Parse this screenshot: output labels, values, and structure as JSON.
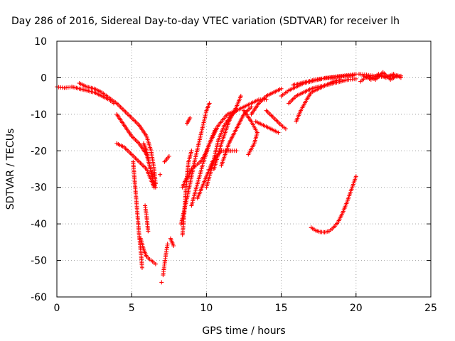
{
  "chart_data": {
    "type": "scatter",
    "title": "Day 286 of 2016, Sidereal Day-to-day VTEC variation (SDTVAR) for receiver lh",
    "xlabel": "GPS time / hours",
    "ylabel": "SDTVAR / TECUs",
    "xlim": [
      0,
      25
    ],
    "ylim": [
      -60,
      10
    ],
    "xticks": [
      0,
      5,
      10,
      15,
      20,
      25
    ],
    "yticks": [
      10,
      0,
      -10,
      -20,
      -30,
      -40,
      -50,
      -60
    ],
    "grid": true,
    "marker": "+",
    "color": "#ff0000",
    "series": [
      {
        "points": [
          [
            0.0,
            -2.5
          ],
          [
            0.5,
            -2.8
          ],
          [
            1.0,
            -2.5
          ],
          [
            1.5,
            -3.0
          ],
          [
            2.0,
            -3.5
          ],
          [
            2.5,
            -4.0
          ],
          [
            3.0,
            -5.0
          ],
          [
            3.5,
            -6.0
          ],
          [
            3.8,
            -7.0
          ]
        ]
      },
      {
        "points": [
          [
            1.5,
            -1.5
          ],
          [
            2.0,
            -2.5
          ],
          [
            2.5,
            -3.0
          ],
          [
            3.0,
            -4.0
          ],
          [
            3.5,
            -5.5
          ],
          [
            4.0,
            -7.0
          ],
          [
            4.5,
            -9.0
          ],
          [
            5.0,
            -11.0
          ],
          [
            5.5,
            -13.0
          ],
          [
            6.0,
            -16.0
          ],
          [
            6.3,
            -20.0
          ],
          [
            6.5,
            -25.0
          ],
          [
            6.6,
            -29.0
          ]
        ]
      },
      {
        "points": [
          [
            4.0,
            -10.0
          ],
          [
            4.5,
            -13.0
          ],
          [
            5.0,
            -16.0
          ],
          [
            5.5,
            -18.0
          ],
          [
            6.0,
            -21.0
          ],
          [
            6.2,
            -24.0
          ],
          [
            6.4,
            -27.0
          ]
        ]
      },
      {
        "points": [
          [
            4.0,
            -18.0
          ],
          [
            4.5,
            -19.0
          ],
          [
            5.0,
            -21.0
          ],
          [
            5.5,
            -23.0
          ],
          [
            6.0,
            -25.0
          ],
          [
            6.3,
            -28.0
          ],
          [
            6.5,
            -30.0
          ]
        ]
      },
      {
        "points": [
          [
            5.8,
            -18.0
          ],
          [
            6.0,
            -20.0
          ],
          [
            6.2,
            -24.0
          ],
          [
            6.4,
            -28.0
          ],
          [
            6.6,
            -30.0
          ]
        ]
      },
      {
        "points": [
          [
            5.1,
            -23.0
          ],
          [
            5.2,
            -28.0
          ],
          [
            5.3,
            -33.0
          ],
          [
            5.4,
            -38.0
          ],
          [
            5.5,
            -43.0
          ],
          [
            5.6,
            -47.0
          ],
          [
            5.7,
            -52.0
          ]
        ]
      },
      {
        "points": [
          [
            5.9,
            -35.0
          ],
          [
            6.0,
            -38.0
          ],
          [
            6.1,
            -42.0
          ]
        ]
      },
      {
        "points": [
          [
            5.6,
            -44.0
          ],
          [
            5.8,
            -47.0
          ],
          [
            6.0,
            -49.0
          ],
          [
            6.3,
            -50.0
          ],
          [
            6.6,
            -51.0
          ]
        ]
      },
      {
        "points": [
          [
            6.9,
            -26.5
          ]
        ]
      },
      {
        "points": [
          [
            7.0,
            -56.0
          ]
        ]
      },
      {
        "points": [
          [
            7.1,
            -54.0
          ],
          [
            7.2,
            -51.0
          ],
          [
            7.3,
            -48.0
          ],
          [
            7.4,
            -45.5
          ]
        ]
      },
      {
        "points": [
          [
            7.2,
            -23.0
          ],
          [
            7.5,
            -21.5
          ]
        ]
      },
      {
        "points": [
          [
            7.6,
            -44.0
          ],
          [
            7.8,
            -46.0
          ]
        ]
      },
      {
        "points": [
          [
            8.4,
            -43.0
          ],
          [
            8.5,
            -38.0
          ],
          [
            8.6,
            -32.0
          ],
          [
            8.7,
            -27.0
          ],
          [
            8.8,
            -23.0
          ],
          [
            9.0,
            -20.0
          ]
        ]
      },
      {
        "points": [
          [
            8.4,
            -30.0
          ],
          [
            8.6,
            -28.0
          ],
          [
            8.8,
            -27.0
          ],
          [
            9.0,
            -25.0
          ],
          [
            9.3,
            -24.0
          ],
          [
            9.6,
            -23.0
          ],
          [
            9.9,
            -21.0
          ],
          [
            10.2,
            -18.0
          ],
          [
            10.6,
            -14.0
          ]
        ]
      },
      {
        "points": [
          [
            8.3,
            -40.0
          ],
          [
            8.7,
            -33.0
          ],
          [
            9.2,
            -23.0
          ],
          [
            9.6,
            -16.0
          ],
          [
            10.0,
            -9.0
          ],
          [
            10.2,
            -7.0
          ]
        ]
      },
      {
        "points": [
          [
            8.7,
            -12.5
          ],
          [
            8.9,
            -11.0
          ]
        ]
      },
      {
        "points": [
          [
            9.0,
            -35.0
          ],
          [
            9.4,
            -29.0
          ],
          [
            9.8,
            -23.0
          ],
          [
            10.2,
            -18.0
          ],
          [
            10.8,
            -13.0
          ],
          [
            11.4,
            -10.0
          ],
          [
            12.0,
            -9.0
          ],
          [
            12.5,
            -8.0
          ],
          [
            13.0,
            -7.0
          ],
          [
            13.5,
            -6.0
          ],
          [
            14.0,
            -6.0
          ]
        ]
      },
      {
        "points": [
          [
            9.4,
            -33.0
          ],
          [
            9.9,
            -28.0
          ],
          [
            10.4,
            -23.0
          ],
          [
            11.0,
            -20.0
          ],
          [
            11.5,
            -20.0
          ],
          [
            12.0,
            -20.0
          ]
        ]
      },
      {
        "points": [
          [
            10.0,
            -30.0
          ],
          [
            10.4,
            -24.0
          ],
          [
            10.8,
            -17.0
          ],
          [
            11.2,
            -13.0
          ],
          [
            11.6,
            -10.5
          ],
          [
            12.0,
            -9.0
          ]
        ]
      },
      {
        "points": [
          [
            10.5,
            -25.0
          ],
          [
            11.0,
            -18.0
          ],
          [
            11.5,
            -12.0
          ],
          [
            12.0,
            -8.0
          ],
          [
            12.3,
            -5.0
          ]
        ]
      },
      {
        "points": [
          [
            11.0,
            -24.0
          ],
          [
            11.5,
            -18.0
          ],
          [
            12.0,
            -14.0
          ],
          [
            12.5,
            -10.0
          ],
          [
            13.0,
            -8.0
          ]
        ]
      },
      {
        "points": [
          [
            12.5,
            -9.0
          ],
          [
            13.0,
            -12.0
          ],
          [
            13.4,
            -15.0
          ],
          [
            13.2,
            -18.0
          ],
          [
            12.8,
            -21.0
          ]
        ]
      },
      {
        "points": [
          [
            13.0,
            -10.0
          ],
          [
            13.5,
            -7.0
          ],
          [
            14.0,
            -5.0
          ],
          [
            14.5,
            -4.0
          ],
          [
            15.0,
            -3.0
          ]
        ]
      },
      {
        "points": [
          [
            13.3,
            -12.0
          ],
          [
            13.8,
            -13.0
          ],
          [
            14.3,
            -14.0
          ],
          [
            14.8,
            -15.0
          ]
        ]
      },
      {
        "points": [
          [
            14.0,
            -9.0
          ],
          [
            14.5,
            -11.0
          ],
          [
            15.0,
            -13.0
          ],
          [
            15.3,
            -14.0
          ]
        ]
      },
      {
        "points": [
          [
            15.0,
            -5.0
          ],
          [
            15.5,
            -3.5
          ],
          [
            16.0,
            -2.5
          ],
          [
            16.5,
            -1.5
          ],
          [
            17.0,
            -1.0
          ],
          [
            17.5,
            -0.5
          ],
          [
            18.0,
            0.0
          ],
          [
            18.5,
            0.2
          ],
          [
            19.0,
            0.5
          ],
          [
            19.5,
            0.7
          ],
          [
            20.0,
            1.0
          ]
        ]
      },
      {
        "points": [
          [
            15.8,
            -2.0
          ],
          [
            16.3,
            -1.5
          ],
          [
            16.8,
            -1.0
          ],
          [
            17.3,
            -0.5
          ],
          [
            17.8,
            -0.2
          ],
          [
            18.3,
            0.0
          ],
          [
            18.8,
            0.3
          ],
          [
            19.3,
            0.5
          ],
          [
            19.8,
            0.6
          ]
        ]
      },
      {
        "points": [
          [
            15.5,
            -7.0
          ],
          [
            16.0,
            -5.0
          ],
          [
            16.5,
            -4.0
          ],
          [
            17.0,
            -3.0
          ],
          [
            17.5,
            -2.5
          ],
          [
            18.0,
            -2.0
          ],
          [
            18.5,
            -1.5
          ],
          [
            19.0,
            -1.0
          ],
          [
            19.5,
            -0.5
          ],
          [
            20.0,
            -0.3
          ]
        ]
      },
      {
        "points": [
          [
            16.0,
            -12.0
          ],
          [
            16.3,
            -9.0
          ],
          [
            16.7,
            -6.0
          ],
          [
            17.0,
            -4.0
          ],
          [
            17.5,
            -3.0
          ],
          [
            18.0,
            -2.0
          ],
          [
            18.5,
            -1.0
          ],
          [
            19.0,
            -0.5
          ]
        ]
      },
      {
        "points": [
          [
            20.2,
            1.0
          ],
          [
            20.7,
            0.8
          ],
          [
            21.2,
            0.5
          ],
          [
            21.7,
            0.3
          ],
          [
            22.2,
            0.5
          ],
          [
            22.7,
            0.4
          ],
          [
            23.0,
            0.5
          ]
        ]
      },
      {
        "points": [
          [
            20.3,
            -1.0
          ],
          [
            20.8,
            0.5
          ],
          [
            21.3,
            -0.5
          ],
          [
            21.8,
            1.5
          ],
          [
            22.3,
            -0.5
          ],
          [
            22.8,
            0.6
          ]
        ]
      },
      {
        "points": [
          [
            20.5,
            0.5
          ],
          [
            21.0,
            -0.5
          ],
          [
            21.5,
            1.0
          ],
          [
            22.0,
            0.0
          ],
          [
            22.5,
            1.0
          ],
          [
            23.0,
            0.0
          ]
        ]
      },
      {
        "points": [
          [
            17.0,
            -41.0
          ],
          [
            17.3,
            -41.8
          ],
          [
            17.6,
            -42.2
          ],
          [
            17.9,
            -42.3
          ],
          [
            18.2,
            -42.0
          ],
          [
            18.5,
            -41.0
          ],
          [
            18.8,
            -39.5
          ],
          [
            19.1,
            -37.0
          ],
          [
            19.4,
            -34.0
          ],
          [
            19.7,
            -30.5
          ],
          [
            20.0,
            -27.0
          ]
        ]
      }
    ]
  }
}
